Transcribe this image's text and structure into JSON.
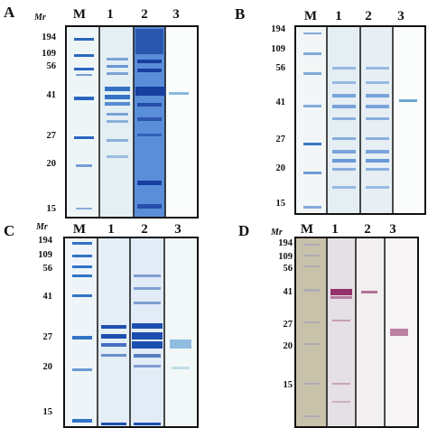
{
  "figure": {
    "mr_label": "Mr",
    "lane_labels": [
      "M",
      "1",
      "2",
      "3"
    ],
    "panels": [
      {
        "id": "A",
        "label": "A",
        "stain": "coomassie",
        "markers": [
          "194",
          "109",
          "56",
          "41",
          "27",
          "20",
          "15"
        ],
        "marker_values_kda": [
          194,
          109,
          56,
          41,
          27,
          20,
          15
        ]
      },
      {
        "id": "B",
        "label": "B",
        "stain": "coomassie",
        "markers": [
          "194",
          "109",
          "56",
          "41",
          "27",
          "20",
          "15"
        ],
        "marker_values_kda": [
          194,
          109,
          56,
          41,
          27,
          20,
          15
        ]
      },
      {
        "id": "C",
        "label": "C",
        "stain": "coomassie",
        "markers": [
          "194",
          "109",
          "56",
          "41",
          "27",
          "20",
          "15"
        ],
        "marker_values_kda": [
          194,
          109,
          56,
          41,
          27,
          20,
          15
        ]
      },
      {
        "id": "D",
        "label": "D",
        "stain": "western-blot",
        "markers": [
          "194",
          "109",
          "56",
          "41",
          "27",
          "20",
          "15"
        ],
        "marker_values_kda": [
          194,
          109,
          56,
          41,
          27,
          20,
          15
        ]
      }
    ]
  },
  "colors": {
    "gel_bg": "#e9f2f5",
    "band_blue": "#2f6fc4",
    "band_dark": "#163e9e",
    "blot_bg": "#f3f0ee",
    "blot_band": "#8a1f5a",
    "lane_3c_band": "#6fa9d8"
  }
}
